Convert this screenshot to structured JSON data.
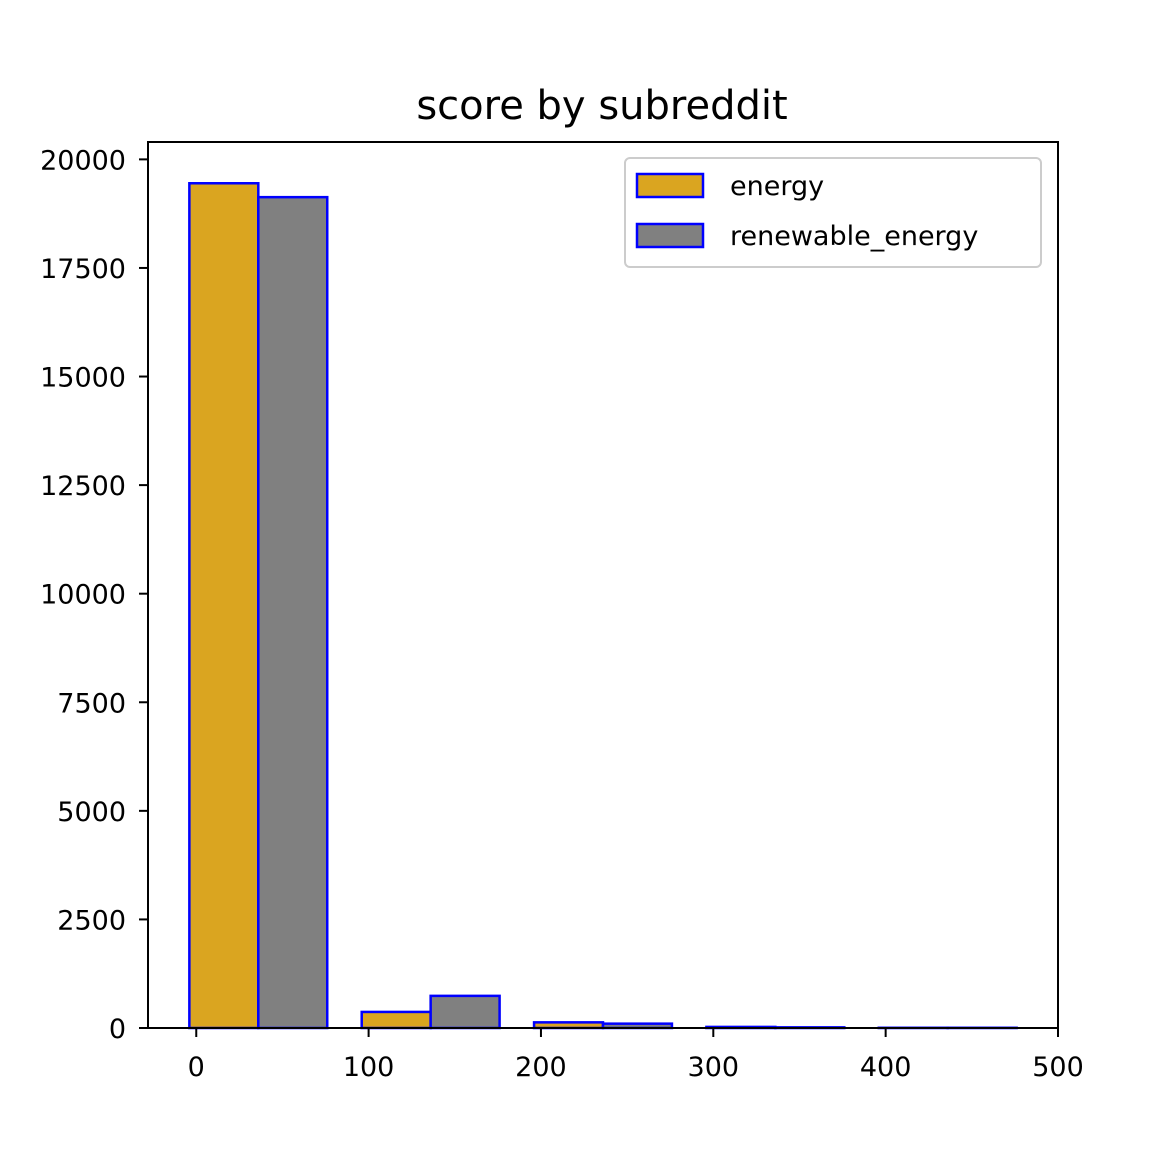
{
  "chart_data": {
    "type": "bar",
    "title": "score by subreddit",
    "xlabel": "",
    "ylabel": "",
    "xlim": [
      -28,
      500
    ],
    "ylim": [
      0,
      20400
    ],
    "x_ticks": [
      "0",
      "100",
      "200",
      "300",
      "400",
      "500"
    ],
    "y_ticks": [
      "0",
      "2500",
      "5000",
      "7500",
      "10000",
      "12500",
      "15000",
      "17500",
      "20000"
    ],
    "bin_edges": [
      -4,
      96,
      196,
      296,
      396,
      496
    ],
    "series": [
      {
        "name": "energy",
        "values": [
          19450,
          370,
          130,
          25,
          5
        ],
        "color": "#DAA520"
      },
      {
        "name": "renewable_energy",
        "values": [
          19130,
          740,
          100,
          15,
          5
        ],
        "color": "#808080"
      }
    ],
    "edge_color": "#0000FF",
    "grid": false,
    "legend_position": "top-right"
  }
}
